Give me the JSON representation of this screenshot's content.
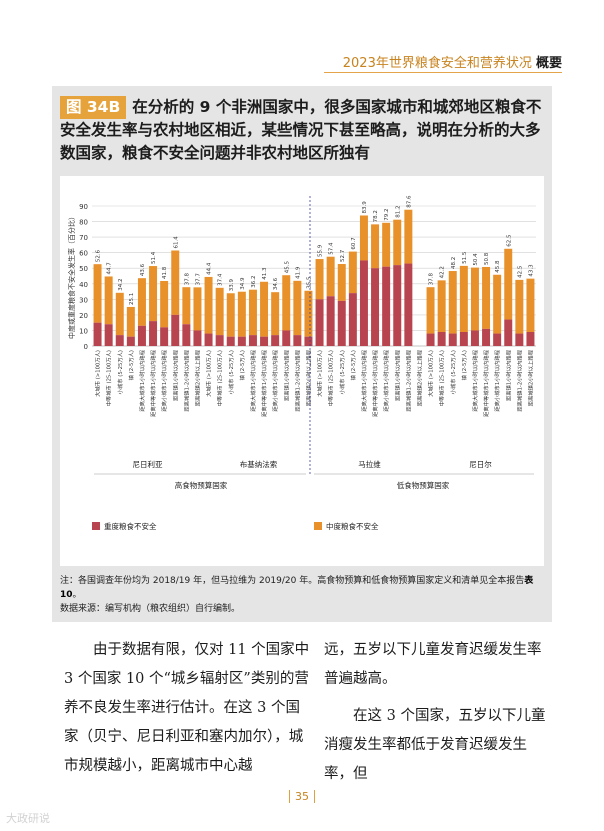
{
  "header": {
    "title": "2023年世界粮食安全和营养状况",
    "tag": "概要"
  },
  "figure": {
    "tag": "图 34B",
    "title": "在分析的 9 个非洲国家中，很多国家城市和城郊地区粮食不安全发生率与农村地区相近，某些情况下甚至略高，说明在分析的大多数国家，粮食不安全问题并非农村地区所独有"
  },
  "chart_data": {
    "type": "bar",
    "stacked": true,
    "ylabel": "中度或重度粮食不安全发生率（百分比）",
    "ylim": [
      0,
      90
    ],
    "yticks": [
      0,
      10,
      20,
      30,
      40,
      50,
      60,
      70,
      80,
      90
    ],
    "categories": [
      "大城市 (>100万人)",
      "中等城市 (25-100万人)",
      "小城市 (5-25万人)",
      "镇 (2-5万人)",
      "距离大城市1小时以内路程",
      "距离中等城市1小时以内路程",
      "距离小城市1小时以内路程",
      "距离镇1小时以内路程",
      "距离城镇1-2小时以内路程",
      "距离城镇2小时以上路程"
    ],
    "countries": [
      {
        "name": "尼日利亚",
        "group": "high",
        "totals": [
          52.6,
          44.7,
          34.2,
          25.1,
          43.6,
          51.4,
          41.8,
          61.4,
          37.8,
          37.7
        ],
        "severe": [
          15,
          14,
          7,
          6,
          13,
          16,
          12,
          20,
          14,
          10
        ]
      },
      {
        "name": "布基纳法索",
        "group": "high",
        "totals": [
          44.4,
          37.4,
          33.9,
          34.9,
          36.2,
          41.3,
          34.6,
          45.5,
          41.9,
          35.5
        ],
        "severe": [
          8,
          7,
          6,
          6,
          7,
          6,
          7,
          10,
          7,
          6
        ]
      },
      {
        "name": "马拉维",
        "group": "low",
        "totals": [
          55.9,
          57.4,
          52.7,
          60.7,
          83.9,
          78.2,
          79.2,
          81.2,
          87.6,
          null
        ],
        "severe": [
          30,
          32,
          29,
          34,
          55,
          50,
          51,
          52,
          53,
          null
        ]
      },
      {
        "name": "尼日尔",
        "group": "low",
        "totals": [
          37.8,
          42.2,
          48.2,
          51.5,
          50.4,
          50.8,
          45.8,
          62.5,
          42.5,
          43.3
        ],
        "severe": [
          8,
          9,
          8,
          9,
          10,
          11,
          8,
          17,
          8,
          9
        ]
      }
    ],
    "group_labels": {
      "high": "高食物预算国家",
      "low": "低食物预算国家"
    },
    "series": [
      {
        "name": "重度粮食不安全",
        "color": "#b8444f"
      },
      {
        "name": "中度粮食不安全",
        "color": "#e8912a"
      }
    ]
  },
  "note": {
    "line1": "注：各国调查年份均为 2018/19 年，但马拉维为 2019/20 年。高食物预算和低食物预算国家定义和清单见全本报告",
    "ref": "表 10",
    "line1_end": "。",
    "line2": "数据来源：编写机构（粮农组织）自行编制。"
  },
  "body": {
    "left": "由于数据有限，仅对 11 个国家中 3 个国家 10 个“城乡辐射区”类别的营养不良发生率进行估计。在这 3 个国家（贝宁、尼日利亚和塞内加尔），城市规模越小，距离城市中心越",
    "right_a": "远，五岁以下儿童发育迟缓发生率普遍越高。",
    "right_b": "在这 3 个国家，五岁以下儿童消瘦发生率都低于发育迟缓发生率，但"
  },
  "footer": {
    "page": "35",
    "watermark": "大政研说"
  }
}
